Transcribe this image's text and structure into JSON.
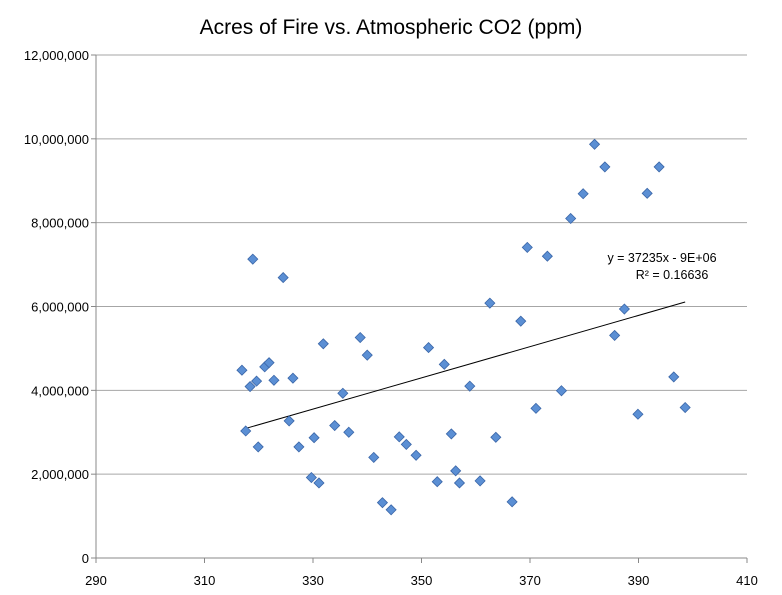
{
  "chart_data": {
    "type": "scatter",
    "title": "Acres of Fire vs. Atmospheric CO2 (ppm)",
    "xlabel": "",
    "ylabel": "",
    "xlim": [
      290,
      410
    ],
    "ylim": [
      0,
      12000000
    ],
    "x_ticks": [
      290,
      310,
      330,
      350,
      370,
      390,
      410
    ],
    "x_tick_labels": [
      "290",
      "310",
      "330",
      "350",
      "370",
      "390",
      "410"
    ],
    "y_ticks": [
      0,
      2000000,
      4000000,
      6000000,
      8000000,
      10000000,
      12000000
    ],
    "y_tick_labels": [
      "0",
      "2,000,000",
      "4,000,000",
      "6,000,000",
      "8,000,000",
      "10,000,000",
      "12,000,000"
    ],
    "grid": "horizontal",
    "marker_color": "#5b8fd4",
    "marker_edge_color": "#3a66a8",
    "series": [
      {
        "points": [
          [
            316.9,
            4480000
          ],
          [
            317.6,
            3030000
          ],
          [
            318.4,
            4090000
          ],
          [
            318.9,
            7130000
          ],
          [
            319.6,
            4220000
          ],
          [
            319.9,
            2650000
          ],
          [
            321.1,
            4560000
          ],
          [
            321.9,
            4660000
          ],
          [
            322.8,
            4240000
          ],
          [
            324.5,
            6690000
          ],
          [
            325.6,
            3270000
          ],
          [
            326.3,
            4290000
          ],
          [
            327.4,
            2650000
          ],
          [
            329.7,
            1920000
          ],
          [
            330.2,
            2870000
          ],
          [
            331.1,
            1790000
          ],
          [
            331.9,
            5110000
          ],
          [
            334.0,
            3160000
          ],
          [
            335.5,
            3930000
          ],
          [
            336.6,
            3000000
          ],
          [
            338.7,
            5260000
          ],
          [
            340.0,
            4840000
          ],
          [
            341.2,
            2400000
          ],
          [
            342.8,
            1320000
          ],
          [
            344.4,
            1150000
          ],
          [
            345.9,
            2890000
          ],
          [
            347.2,
            2710000
          ],
          [
            349.0,
            2450000
          ],
          [
            351.3,
            5020000
          ],
          [
            352.9,
            1820000
          ],
          [
            354.2,
            4620000
          ],
          [
            355.5,
            2960000
          ],
          [
            356.3,
            2080000
          ],
          [
            357.0,
            1790000
          ],
          [
            358.9,
            4100000
          ],
          [
            360.8,
            1840000
          ],
          [
            362.6,
            6080000
          ],
          [
            363.7,
            2880000
          ],
          [
            366.7,
            1340000
          ],
          [
            368.3,
            5650000
          ],
          [
            369.5,
            7410000
          ],
          [
            371.1,
            3570000
          ],
          [
            373.2,
            7200000
          ],
          [
            375.8,
            3990000
          ],
          [
            377.5,
            8100000
          ],
          [
            379.8,
            8690000
          ],
          [
            381.9,
            9870000
          ],
          [
            383.8,
            9330000
          ],
          [
            385.6,
            5310000
          ],
          [
            387.4,
            5940000
          ],
          [
            389.9,
            3430000
          ],
          [
            391.6,
            8700000
          ],
          [
            393.8,
            9330000
          ],
          [
            396.5,
            4320000
          ],
          [
            398.6,
            3590000
          ]
        ]
      }
    ],
    "trendline": {
      "x_range": [
        317.2,
        398.6
      ],
      "slope": 37235,
      "intercept": -8735000,
      "equation": "y = 37235x - 9E+06",
      "r_squared": "R² = 0.16636"
    }
  }
}
